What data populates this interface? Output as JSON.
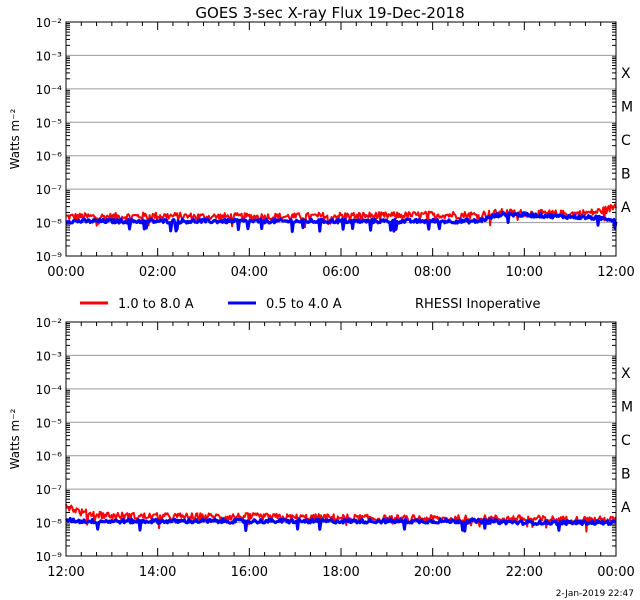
{
  "title": "GOES 3-sec X-ray Flux   19-Dec-2018",
  "legend": [
    {
      "label": "1.0 to 8.0 A",
      "color": "#ff0000"
    },
    {
      "label": "0.5 to 4.0 A",
      "color": "#0000ff"
    }
  ],
  "status_note": "RHESSI Inoperative",
  "timestamp": "2-Jan-2019 22:47",
  "chart_data": [
    {
      "type": "line",
      "ylabel": "Watts m⁻²",
      "y_scale": "log",
      "ylim": [
        1e-09,
        0.01
      ],
      "y_tick_labels": [
        "10⁻⁹",
        "10⁻⁸",
        "10⁻⁷",
        "10⁻⁶",
        "10⁻⁵",
        "10⁻⁴",
        "10⁻³",
        "10⁻²"
      ],
      "x_tick_labels": [
        "00:00",
        "02:00",
        "04:00",
        "06:00",
        "08:00",
        "10:00",
        "12:00"
      ],
      "flare_classes": [
        "A",
        "B",
        "C",
        "M",
        "X"
      ],
      "grid": true,
      "series": [
        {
          "name": "1.0 to 8.0 A",
          "x": [
            "00:00",
            "01:00",
            "02:00",
            "03:00",
            "04:00",
            "05:00",
            "06:00",
            "07:00",
            "08:00",
            "09:00",
            "09:30",
            "10:00",
            "11:00",
            "11:30",
            "11:50",
            "12:00"
          ],
          "values": [
            1.5e-08,
            1.5e-08,
            1.6e-08,
            1.5e-08,
            1.5e-08,
            1.5e-08,
            1.6e-08,
            1.6e-08,
            1.7e-08,
            1.7e-08,
            2e-08,
            1.9e-08,
            1.8e-08,
            2e-08,
            2.5e-08,
            3.3e-08
          ]
        },
        {
          "name": "0.5 to 4.0 A",
          "x": [
            "00:00",
            "01:00",
            "02:00",
            "03:00",
            "04:00",
            "05:00",
            "06:00",
            "07:00",
            "08:00",
            "09:00",
            "09:30",
            "10:00",
            "11:00",
            "11:30",
            "11:50",
            "12:00"
          ],
          "values": [
            1.1e-08,
            1.1e-08,
            1.1e-08,
            1.1e-08,
            1.1e-08,
            1.1e-08,
            1.1e-08,
            1.1e-08,
            1.1e-08,
            1.1e-08,
            1.8e-08,
            1.7e-08,
            1.5e-08,
            1.4e-08,
            1.3e-08,
            1.2e-08
          ]
        }
      ]
    },
    {
      "type": "line",
      "ylabel": "Watts m⁻²",
      "y_scale": "log",
      "ylim": [
        1e-09,
        0.01
      ],
      "y_tick_labels": [
        "10⁻⁹",
        "10⁻⁸",
        "10⁻⁷",
        "10⁻⁶",
        "10⁻⁵",
        "10⁻⁴",
        "10⁻³",
        "10⁻²"
      ],
      "x_tick_labels": [
        "12:00",
        "14:00",
        "16:00",
        "18:00",
        "20:00",
        "22:00",
        "00:00"
      ],
      "flare_classes": [
        "A",
        "B",
        "C",
        "M",
        "X"
      ],
      "grid": true,
      "series": [
        {
          "name": "1.0 to 8.0 A",
          "x": [
            "12:00",
            "12:20",
            "13:00",
            "14:00",
            "15:00",
            "16:00",
            "17:00",
            "18:00",
            "19:00",
            "20:00",
            "21:00",
            "22:00",
            "23:00",
            "00:00"
          ],
          "values": [
            3.3e-08,
            2e-08,
            1.6e-08,
            1.5e-08,
            1.5e-08,
            1.5e-08,
            1.4e-08,
            1.4e-08,
            1.3e-08,
            1.3e-08,
            1.3e-08,
            1.3e-08,
            1.2e-08,
            1.2e-08
          ]
        },
        {
          "name": "0.5 to 4.0 A",
          "x": [
            "12:00",
            "12:20",
            "13:00",
            "14:00",
            "15:00",
            "16:00",
            "17:00",
            "18:00",
            "19:00",
            "20:00",
            "21:00",
            "22:00",
            "23:00",
            "00:00"
          ],
          "values": [
            1.2e-08,
            1.1e-08,
            1.1e-08,
            1.1e-08,
            1.1e-08,
            1.1e-08,
            1.1e-08,
            1.1e-08,
            1.1e-08,
            1.1e-08,
            1.1e-08,
            1e-08,
            1e-08,
            1e-08
          ]
        }
      ]
    }
  ]
}
